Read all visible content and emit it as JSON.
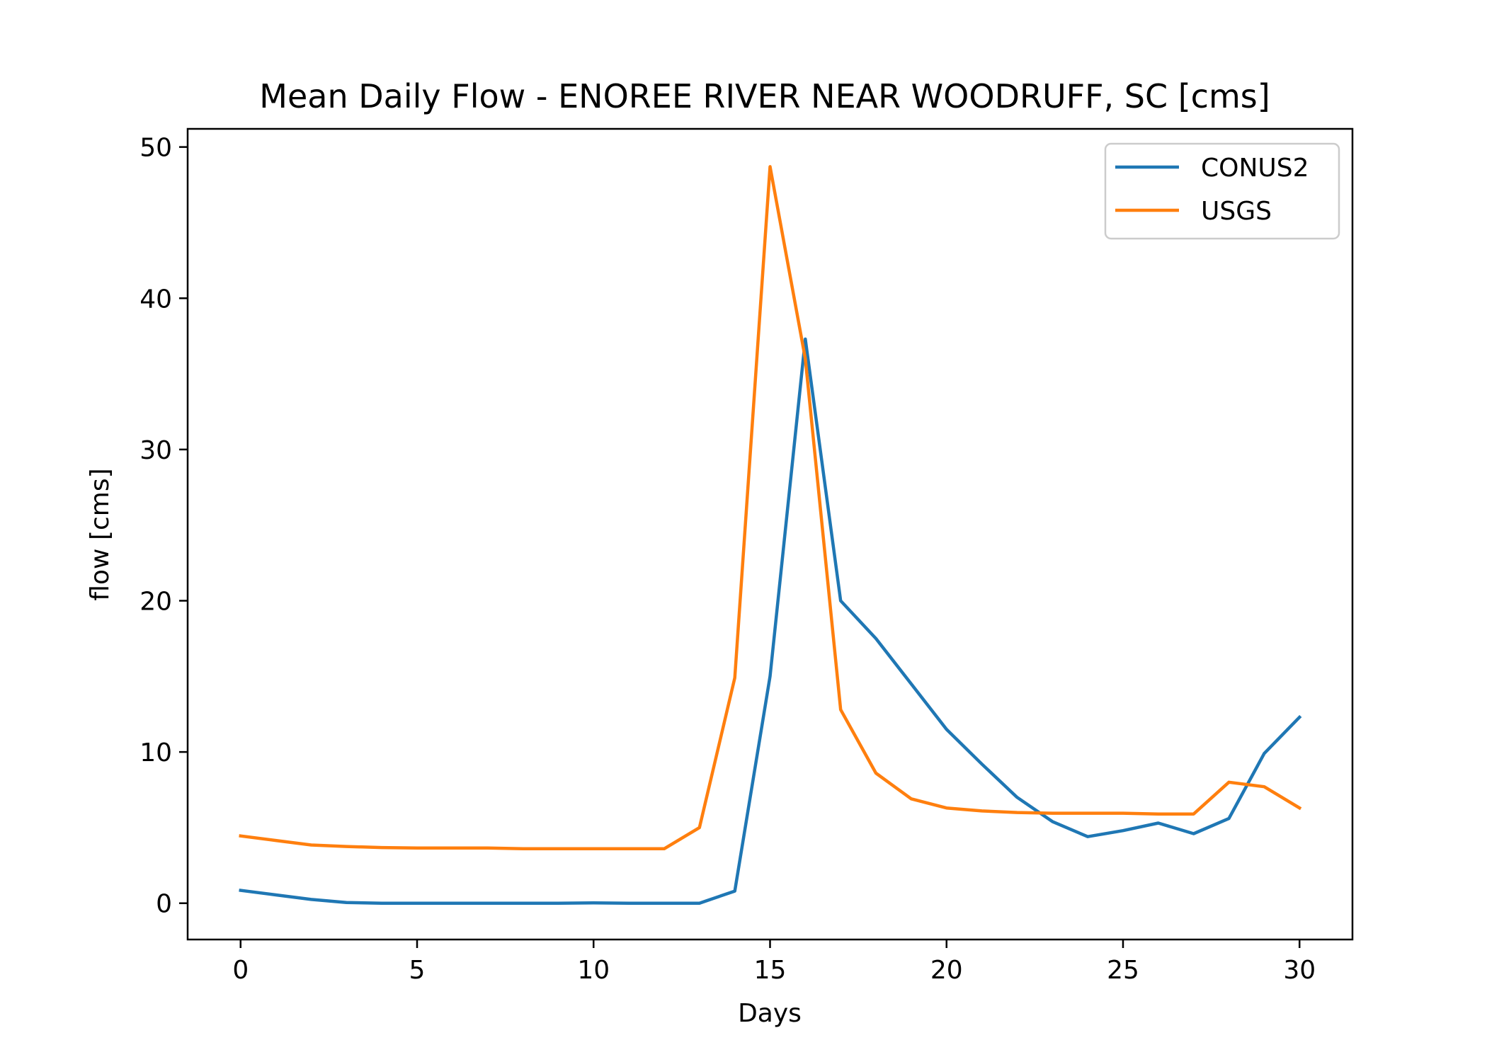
{
  "chart_data": {
    "type": "line",
    "title": "Mean Daily Flow - ENOREE RIVER NEAR WOODRUFF, SC [cms]",
    "xlabel": "Days",
    "ylabel": "flow [cms]",
    "xlim": [
      -1.5,
      31.5
    ],
    "ylim": [
      -2.4,
      51.2
    ],
    "xticks": [
      0,
      5,
      10,
      15,
      20,
      25,
      30
    ],
    "yticks": [
      0,
      10,
      20,
      30,
      40,
      50
    ],
    "grid": false,
    "legend_position": "top-right",
    "x": [
      0,
      1,
      2,
      3,
      4,
      5,
      6,
      7,
      8,
      9,
      10,
      11,
      12,
      13,
      14,
      15,
      16,
      17,
      18,
      19,
      20,
      21,
      22,
      23,
      24,
      25,
      26,
      27,
      28,
      29,
      30
    ],
    "series": [
      {
        "name": "CONUS2",
        "color": "#1f77b4",
        "values": [
          0.85,
          0.55,
          0.25,
          0.05,
          0.0,
          0.0,
          0.0,
          0.0,
          0.0,
          0.0,
          0.02,
          0.0,
          0.0,
          0.0,
          0.8,
          15.0,
          37.3,
          20.0,
          17.5,
          14.5,
          11.5,
          9.2,
          7.0,
          5.4,
          4.4,
          4.8,
          5.3,
          4.6,
          5.6,
          9.9,
          12.3
        ]
      },
      {
        "name": "USGS",
        "color": "#ff7f0e",
        "values": [
          4.45,
          4.15,
          3.85,
          3.75,
          3.68,
          3.65,
          3.65,
          3.65,
          3.6,
          3.6,
          3.6,
          3.6,
          3.6,
          5.0,
          14.9,
          48.7,
          36.0,
          12.8,
          8.6,
          6.9,
          6.3,
          6.1,
          6.0,
          5.95,
          5.95,
          5.95,
          5.9,
          5.9,
          8.0,
          7.7,
          6.3
        ]
      }
    ]
  }
}
